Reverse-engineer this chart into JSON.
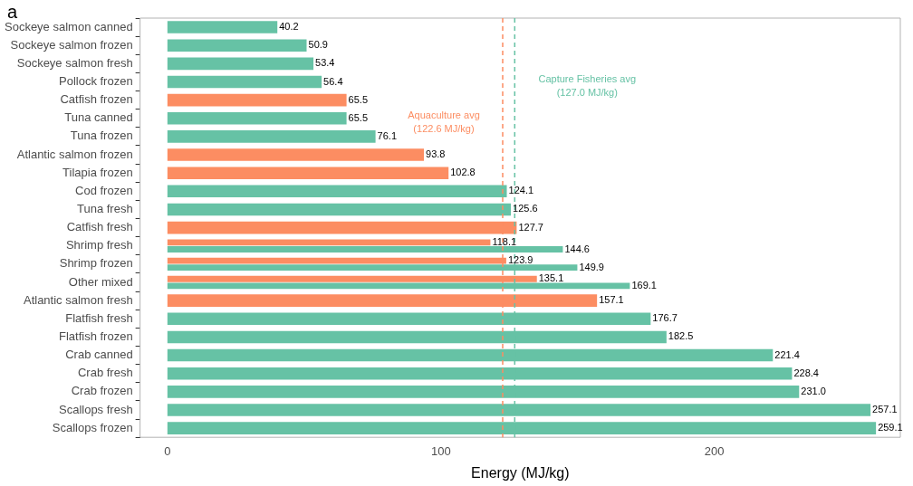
{
  "chart_data": {
    "type": "bar",
    "orientation": "horizontal",
    "title": "a",
    "xlabel": "Energy (MJ/kg)",
    "categories": [
      "Sockeye salmon canned",
      "Sockeye salmon frozen",
      "Sockeye salmon fresh",
      "Pollock frozen",
      "Catfish frozen",
      "Tuna canned",
      "Tuna frozen",
      "Atlantic salmon frozen",
      "Tilapia frozen",
      "Cod frozen",
      "Tuna fresh",
      "Catfish fresh",
      "Shrimp fresh",
      "Shrimp frozen",
      "Other mixed",
      "Atlantic salmon fresh",
      "Flatfish fresh",
      "Flatfish frozen",
      "Crab canned",
      "Crab fresh",
      "Crab frozen",
      "Scallops fresh",
      "Scallops frozen"
    ],
    "series": [
      {
        "color": "#fc8d62",
        "values": [
          null,
          null,
          null,
          null,
          65.5,
          null,
          null,
          93.8,
          102.8,
          null,
          null,
          127.7,
          118.1,
          123.9,
          135.1,
          157.1,
          null,
          null,
          null,
          null,
          null,
          null,
          null
        ],
        "value_labels": [
          null,
          null,
          null,
          null,
          "65.5",
          null,
          null,
          "93.8",
          "102.8",
          null,
          null,
          "127.7",
          "118.1",
          "123.9",
          "135.1",
          "157.1",
          null,
          null,
          null,
          null,
          null,
          null,
          null
        ]
      },
      {
        "color": "#66c2a5",
        "values": [
          40.2,
          50.9,
          53.4,
          56.4,
          null,
          65.5,
          76.1,
          null,
          null,
          124.1,
          125.6,
          null,
          144.6,
          149.9,
          169.1,
          null,
          176.7,
          182.5,
          221.4,
          228.4,
          231.0,
          257.1,
          259.1
        ],
        "value_labels": [
          "40.2",
          "50.9",
          "53.4",
          "56.4",
          null,
          "65.5",
          "76.1",
          null,
          null,
          "124.1",
          "125.6",
          null,
          "144.6",
          "149.9",
          "169.1",
          null,
          "176.7",
          "182.5",
          "221.4",
          "228.4",
          "231.0",
          "257.1",
          "259.1"
        ]
      }
    ],
    "xlim": [
      -10,
      268
    ],
    "xticks": [
      0,
      100,
      200
    ],
    "grid": false,
    "legend": false,
    "ref_lines": [
      {
        "axis": "x",
        "value": 122.6,
        "label": "Aquaculture avg\n(122.6 MJ/kg)",
        "color": "#fc8d62",
        "line_style": "dashed"
      },
      {
        "axis": "x",
        "value": 127.0,
        "label": "Capture Fisheries avg\n(127.0 MJ/kg)",
        "color": "#66c2a5",
        "line_style": "dashed"
      }
    ]
  }
}
